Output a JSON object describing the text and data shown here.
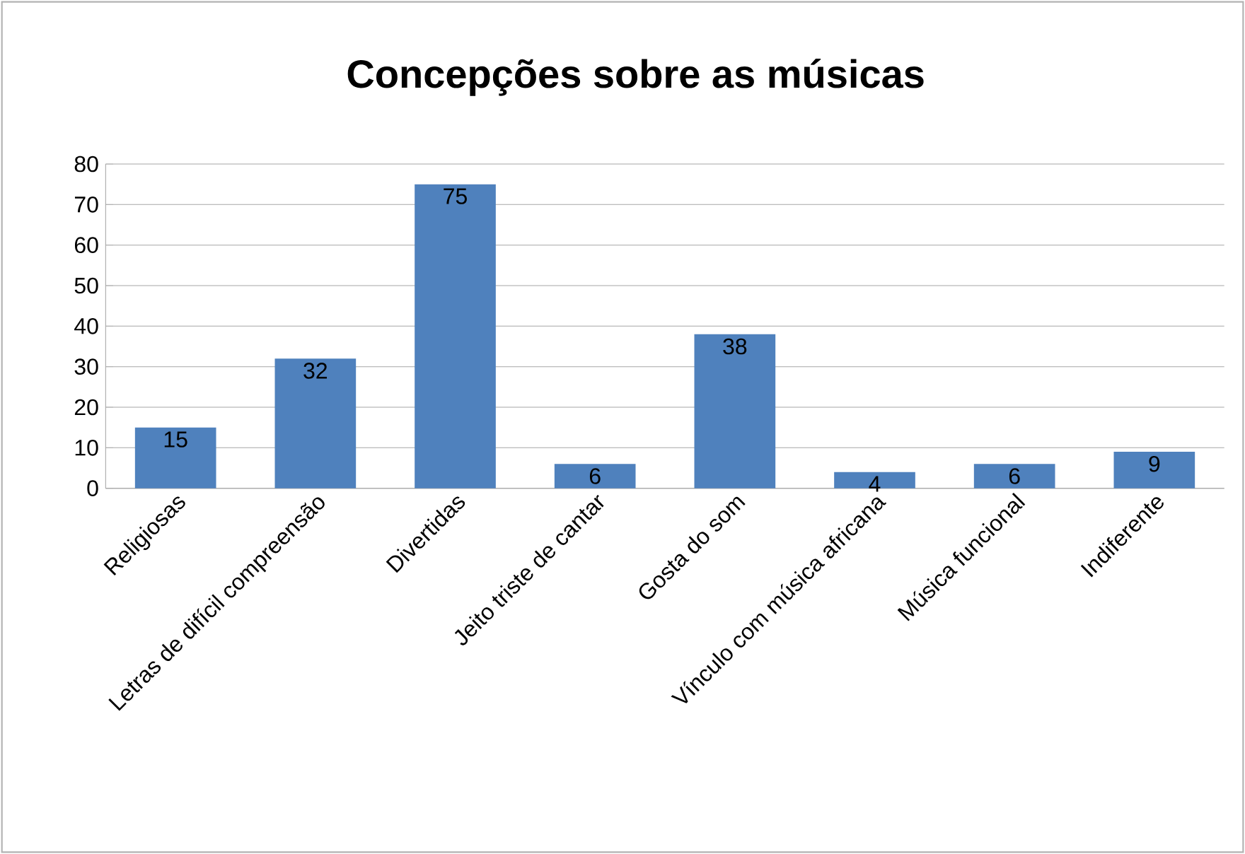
{
  "chart_data": {
    "type": "bar",
    "title": "Concepções sobre as músicas",
    "categories": [
      "Religiosas",
      "Letras de difícil compreensão",
      "Divertidas",
      "Jeito triste de cantar",
      "Gosta do som",
      "Vínculo com música africana",
      "Música funcional",
      "Indiferente"
    ],
    "values": [
      15,
      32,
      75,
      6,
      38,
      4,
      6,
      9
    ],
    "color": "#4f81bd",
    "ylim": [
      0,
      80
    ],
    "yticks": [
      0,
      10,
      20,
      30,
      40,
      50,
      60,
      70,
      80
    ],
    "grid": "y",
    "data_labels": true
  }
}
